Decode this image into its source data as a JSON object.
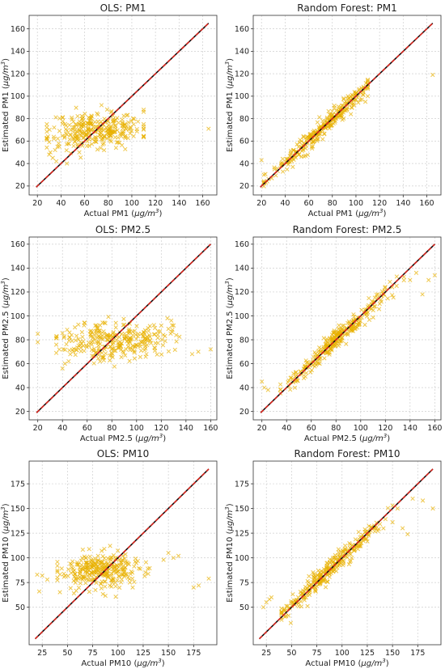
{
  "colors": {
    "points": "#e8b000",
    "identity_line": "#d9251d",
    "identity_line_dark": "#111111",
    "grid": "#cfcfcf",
    "axes": "#333333"
  },
  "chart_data": [
    {
      "type": "scatter",
      "title": "OLS: PM1",
      "xlabel": "Actual PM1 (μg/m³)",
      "xlabel_parts": [
        "Actual PM1 (",
        "μg/m",
        "3",
        ")"
      ],
      "ylabel": "Estimated PM1 (μg/m³)",
      "ylabel_parts": [
        "Estimated PM1 (",
        "μg/m",
        "3",
        ")"
      ],
      "xlim": [
        13,
        172
      ],
      "ylim": [
        12,
        172
      ],
      "xticks": [
        20,
        40,
        60,
        80,
        100,
        120,
        140,
        160
      ],
      "yticks": [
        20,
        40,
        60,
        80,
        100,
        120,
        140,
        160
      ],
      "identity_line": [
        19,
        165
      ],
      "marker": "x",
      "grid": true,
      "points_seed": 11,
      "points_count": 300,
      "points_model": {
        "type": "flat",
        "x_range": [
          28,
          110
        ],
        "x_center": 70,
        "x_sd": 20,
        "y_center": 70,
        "y_sd": 8,
        "slope": 0.05
      },
      "points_extra": [
        [
          165,
          71
        ],
        [
          35,
          52
        ],
        [
          33,
          45
        ],
        [
          37,
          55
        ],
        [
          31,
          50
        ],
        [
          30,
          48
        ],
        [
          36,
          42
        ],
        [
          38,
          58
        ],
        [
          34,
          62
        ],
        [
          45,
          40
        ]
      ]
    },
    {
      "type": "scatter",
      "title": "Random Forest: PM1",
      "xlabel": "Actual PM1 (μg/m³)",
      "xlabel_parts": [
        "Actual PM1 (",
        "μg/m",
        "3",
        ")"
      ],
      "ylabel": "Estimated PM1 (μg/m³)",
      "ylabel_parts": [
        "Estimated PM1 (",
        "μg/m",
        "3",
        ")"
      ],
      "xlim": [
        13,
        172
      ],
      "ylim": [
        12,
        172
      ],
      "xticks": [
        20,
        40,
        60,
        80,
        100,
        120,
        140,
        160
      ],
      "yticks": [
        20,
        40,
        60,
        80,
        100,
        120,
        140,
        160
      ],
      "identity_line": [
        19,
        165
      ],
      "marker": "x",
      "grid": true,
      "points_seed": 23,
      "points_count": 300,
      "points_model": {
        "type": "diag",
        "x_range": [
          22,
          110
        ],
        "x_center": 70,
        "x_sd": 22,
        "y_sd": 4,
        "shrink": 0.03
      },
      "points_extra": [
        [
          165,
          119
        ],
        [
          20,
          43
        ],
        [
          22,
          30
        ],
        [
          105,
          97
        ],
        [
          110,
          100
        ],
        [
          108,
          95
        ]
      ]
    },
    {
      "type": "scatter",
      "title": "OLS: PM2.5",
      "xlabel": "Actual PM2.5 (μg/m³)",
      "xlabel_parts": [
        "Actual PM2.5 (",
        "μg/m",
        "3",
        ")"
      ],
      "ylabel": "Estimated PM2.5 (μg/m³)",
      "ylabel_parts": [
        "Estimated PM2.5 (",
        "μg/m",
        "3",
        ")"
      ],
      "xlim": [
        13,
        165
      ],
      "ylim": [
        13,
        166
      ],
      "xticks": [
        20,
        40,
        60,
        80,
        100,
        120,
        140,
        160
      ],
      "yticks": [
        20,
        40,
        60,
        80,
        100,
        120,
        140,
        160
      ],
      "identity_line": [
        19,
        160
      ],
      "marker": "x",
      "grid": true,
      "points_seed": 37,
      "points_count": 300,
      "points_model": {
        "type": "flat",
        "x_range": [
          35,
          140
        ],
        "x_center": 82,
        "x_sd": 22,
        "y_center": 80,
        "y_sd": 8,
        "slope": 0.04
      },
      "points_extra": [
        [
          20,
          85
        ],
        [
          20,
          78
        ],
        [
          150,
          70
        ],
        [
          160,
          72
        ],
        [
          145,
          68
        ],
        [
          130,
          92
        ],
        [
          42,
          60
        ],
        [
          40,
          56
        ],
        [
          45,
          62
        ],
        [
          125,
          98
        ]
      ]
    },
    {
      "type": "scatter",
      "title": "Random Forest: PM2.5",
      "xlabel": "Actual PM2.5 (μg/m³)",
      "xlabel_parts": [
        "Actual PM2.5 (",
        "μg/m",
        "3",
        ")"
      ],
      "ylabel": "Estimated PM2.5 (μg/m³)",
      "ylabel_parts": [
        "Estimated PM2.5 (",
        "μg/m",
        "3",
        ")"
      ],
      "xlim": [
        13,
        165
      ],
      "ylim": [
        13,
        166
      ],
      "xticks": [
        20,
        40,
        60,
        80,
        100,
        120,
        140,
        160
      ],
      "yticks": [
        20,
        40,
        60,
        80,
        100,
        120,
        140,
        160
      ],
      "identity_line": [
        19,
        160
      ],
      "marker": "x",
      "grid": true,
      "points_seed": 41,
      "points_count": 300,
      "points_model": {
        "type": "diag",
        "x_range": [
          35,
          135
        ],
        "x_center": 82,
        "x_sd": 22,
        "y_sd": 4,
        "shrink": 0.04
      },
      "points_extra": [
        [
          160,
          134
        ],
        [
          155,
          130
        ],
        [
          150,
          118
        ],
        [
          20,
          45
        ],
        [
          22,
          40
        ],
        [
          25,
          38
        ],
        [
          140,
          130
        ],
        [
          145,
          136
        ]
      ]
    },
    {
      "type": "scatter",
      "title": "OLS: PM10",
      "xlabel": "Actual PM10 (μg/m³)",
      "xlabel_parts": [
        "Actual PM10 (",
        "μg/m",
        "3",
        ")"
      ],
      "ylabel": "Estimated PM10 (μg/m³)",
      "ylabel_parts": [
        "Estimated PM10 (",
        "μg/m",
        "3",
        ")"
      ],
      "xlim": [
        12,
        198
      ],
      "ylim": [
        12,
        198
      ],
      "xticks": [
        25,
        50,
        75,
        100,
        125,
        150,
        175
      ],
      "yticks": [
        50,
        75,
        100,
        125,
        150,
        175
      ],
      "identity_line": [
        18,
        190
      ],
      "marker": "x",
      "grid": true,
      "points_seed": 53,
      "points_count": 300,
      "points_model": {
        "type": "flat",
        "x_range": [
          40,
          160
        ],
        "x_center": 85,
        "x_sd": 22,
        "y_center": 87,
        "y_sd": 9,
        "slope": 0.05
      },
      "points_extra": [
        [
          190,
          79
        ],
        [
          180,
          72
        ],
        [
          175,
          70
        ],
        [
          20,
          83
        ],
        [
          25,
          82
        ],
        [
          22,
          66
        ],
        [
          30,
          78
        ],
        [
          150,
          105
        ],
        [
          155,
          100
        ],
        [
          160,
          102
        ]
      ]
    },
    {
      "type": "scatter",
      "title": "Random Forest: PM10",
      "xlabel": "Actual PM10 (μg/m³)",
      "xlabel_parts": [
        "Actual PM10 (",
        "μg/m",
        "3",
        ")"
      ],
      "ylabel": "Estimated PM10 (μg/m³)",
      "ylabel_parts": [
        "Estimated PM10 (",
        "μg/m",
        "3",
        ")"
      ],
      "xlim": [
        12,
        198
      ],
      "ylim": [
        12,
        198
      ],
      "xticks": [
        25,
        50,
        75,
        100,
        125,
        150,
        175
      ],
      "yticks": [
        50,
        75,
        100,
        125,
        150,
        175
      ],
      "identity_line": [
        18,
        190
      ],
      "marker": "x",
      "grid": true,
      "points_seed": 67,
      "points_count": 300,
      "points_model": {
        "type": "diag",
        "x_range": [
          40,
          150
        ],
        "x_center": 85,
        "x_sd": 24,
        "y_sd": 5,
        "shrink": 0.05
      },
      "points_extra": [
        [
          190,
          150
        ],
        [
          180,
          158
        ],
        [
          170,
          160
        ],
        [
          22,
          50
        ],
        [
          25,
          55
        ],
        [
          28,
          58
        ],
        [
          30,
          60
        ],
        [
          160,
          130
        ],
        [
          165,
          124
        ],
        [
          155,
          150
        ]
      ]
    }
  ]
}
